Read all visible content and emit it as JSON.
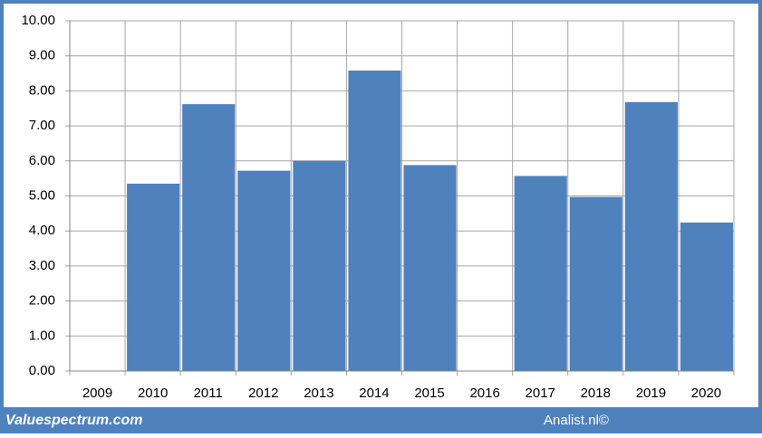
{
  "chart_data": {
    "type": "bar",
    "categories": [
      "2009",
      "2010",
      "2011",
      "2012",
      "2013",
      "2014",
      "2015",
      "2016",
      "2017",
      "2018",
      "2019",
      "2020"
    ],
    "values": [
      null,
      5.35,
      7.62,
      5.72,
      6.0,
      8.58,
      5.88,
      null,
      5.57,
      4.97,
      7.68,
      4.24
    ],
    "color": "#4f81bd",
    "ylim": [
      0,
      10
    ],
    "yticks": [
      {
        "value": 0,
        "label": "0.00"
      },
      {
        "value": 1,
        "label": "1.00"
      },
      {
        "value": 2,
        "label": "2.00"
      },
      {
        "value": 3,
        "label": "3.00"
      },
      {
        "value": 4,
        "label": "4.00"
      },
      {
        "value": 5,
        "label": "5.00"
      },
      {
        "value": 6,
        "label": "6.00"
      },
      {
        "value": 7,
        "label": "7.00"
      },
      {
        "value": 8,
        "label": "8.00"
      },
      {
        "value": 9,
        "label": "9.00"
      },
      {
        "value": 10,
        "label": "10.00"
      }
    ],
    "grid": true
  },
  "footer": {
    "left": "Valuespectrum.com",
    "right": "Analist.nl©"
  }
}
